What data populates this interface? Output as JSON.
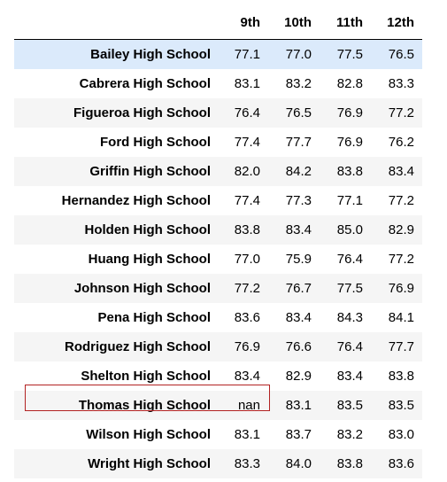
{
  "table": {
    "columns": [
      "9th",
      "10th",
      "11th",
      "12th"
    ],
    "rows": [
      {
        "school": "Bailey High School",
        "values": [
          "77.1",
          "77.0",
          "77.5",
          "76.5"
        ]
      },
      {
        "school": "Cabrera High School",
        "values": [
          "83.1",
          "83.2",
          "82.8",
          "83.3"
        ]
      },
      {
        "school": "Figueroa High School",
        "values": [
          "76.4",
          "76.5",
          "76.9",
          "77.2"
        ]
      },
      {
        "school": "Ford High School",
        "values": [
          "77.4",
          "77.7",
          "76.9",
          "76.2"
        ]
      },
      {
        "school": "Griffin High School",
        "values": [
          "82.0",
          "84.2",
          "83.8",
          "83.4"
        ]
      },
      {
        "school": "Hernandez High School",
        "values": [
          "77.4",
          "77.3",
          "77.1",
          "77.2"
        ]
      },
      {
        "school": "Holden High School",
        "values": [
          "83.8",
          "83.4",
          "85.0",
          "82.9"
        ]
      },
      {
        "school": "Huang High School",
        "values": [
          "77.0",
          "75.9",
          "76.4",
          "77.2"
        ]
      },
      {
        "school": "Johnson High School",
        "values": [
          "77.2",
          "76.7",
          "77.5",
          "76.9"
        ]
      },
      {
        "school": "Pena High School",
        "values": [
          "83.6",
          "83.4",
          "84.3",
          "84.1"
        ]
      },
      {
        "school": "Rodriguez High School",
        "values": [
          "76.9",
          "76.6",
          "76.4",
          "77.7"
        ]
      },
      {
        "school": "Shelton High School",
        "values": [
          "83.4",
          "82.9",
          "83.4",
          "83.8"
        ]
      },
      {
        "school": "Thomas High School",
        "values": [
          "nan",
          "83.1",
          "83.5",
          "83.5"
        ]
      },
      {
        "school": "Wilson High School",
        "values": [
          "83.1",
          "83.7",
          "83.2",
          "83.0"
        ]
      },
      {
        "school": "Wright High School",
        "values": [
          "83.3",
          "84.0",
          "83.8",
          "83.6"
        ]
      }
    ]
  },
  "colors": {
    "highlight_row": "#dbeafb",
    "stripe_row": "#f5f5f5",
    "annotation_box": "#b22222"
  }
}
